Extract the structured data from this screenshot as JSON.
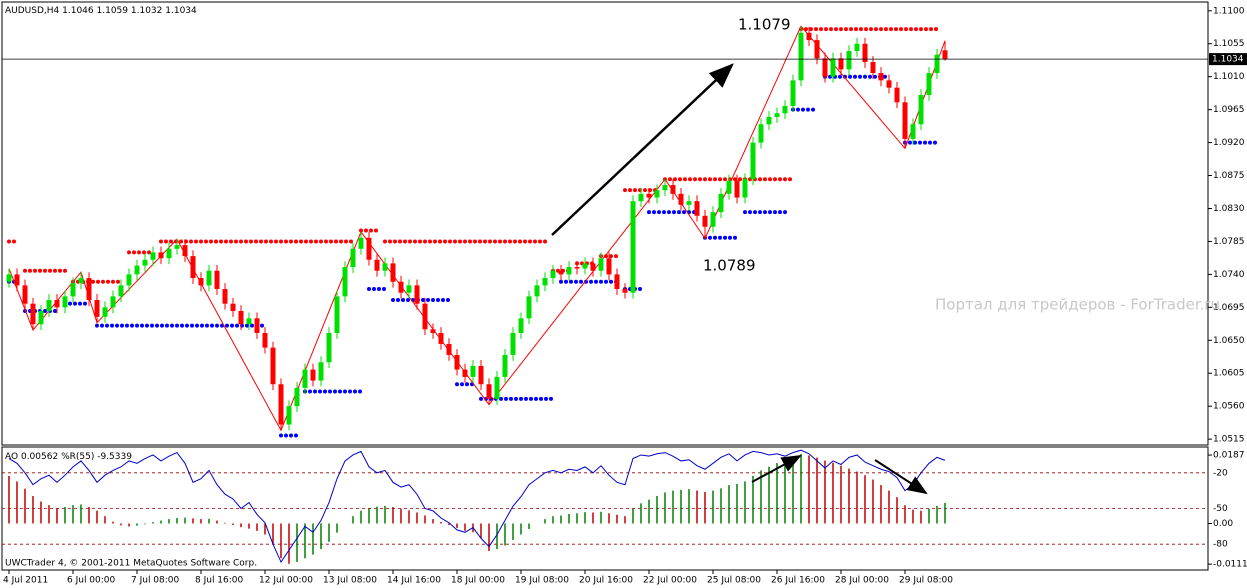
{
  "chart_data": [
    {
      "type": "candlestick",
      "title": "AUDUSD,H4",
      "categories": [
        "4 Jul 2011",
        null,
        null,
        null,
        null,
        null,
        null,
        null,
        "6 Jul 00:00",
        null,
        null,
        null,
        null,
        null,
        null,
        null,
        "7 Jul 08:00",
        null,
        null,
        null,
        null,
        null,
        null,
        null,
        "8 Jul 16:00",
        null,
        null,
        null,
        null,
        null,
        null,
        null,
        "12 Jul 00:00",
        null,
        null,
        null,
        null,
        null,
        null,
        null,
        "13 Jul 08:00",
        null,
        null,
        null,
        null,
        null,
        null,
        null,
        "14 Jul 16:00",
        null,
        null,
        null,
        null,
        null,
        null,
        null,
        "18 Jul 00:00",
        null,
        null,
        null,
        null,
        null,
        null,
        null,
        "19 Jul 08:00",
        null,
        null,
        null,
        null,
        null,
        null,
        null,
        "20 Jul 16:00",
        null,
        null,
        null,
        null,
        null,
        null,
        null,
        "22 Jul 00:00",
        null,
        null,
        null,
        null,
        null,
        null,
        null,
        "25 Jul 08:00",
        null,
        null,
        null,
        null,
        null,
        null,
        null,
        "26 Jul 16:00",
        null,
        null,
        null,
        null,
        null,
        null,
        null,
        "28 Jul 00:00",
        null,
        null,
        null,
        null,
        null,
        null,
        null,
        "29 Jul 08:00",
        null,
        null,
        null,
        null,
        null
      ],
      "open": [
        1.073,
        1.074,
        1.0725,
        1.07,
        1.0672,
        1.069,
        1.0705,
        1.0695,
        1.071,
        1.0728,
        1.0735,
        1.0705,
        1.0682,
        1.0695,
        1.071,
        1.0725,
        1.074,
        1.0752,
        1.076,
        1.077,
        1.0762,
        1.0775,
        1.078,
        1.0765,
        1.0735,
        1.0725,
        1.0745,
        1.072,
        1.07,
        1.069,
        1.0672,
        1.068,
        1.066,
        1.064,
        1.059,
        1.0535,
        1.056,
        1.0585,
        1.061,
        1.0595,
        1.062,
        1.066,
        1.071,
        1.075,
        1.0775,
        1.079,
        1.076,
        1.0745,
        1.0755,
        1.073,
        1.0715,
        1.0725,
        1.07,
        1.0665,
        1.066,
        1.0645,
        1.063,
        1.061,
        1.06,
        1.0615,
        1.059,
        1.057,
        1.06,
        1.063,
        1.066,
        1.068,
        1.071,
        1.0725,
        1.0735,
        1.0745,
        1.074,
        1.075,
        1.0748,
        1.0755,
        1.0745,
        1.0762,
        1.074,
        1.072,
        1.0715,
        1.084,
        1.085,
        1.0845,
        1.0855,
        1.0862,
        1.085,
        1.0835,
        1.084,
        1.082,
        1.0805,
        1.0825,
        1.085,
        1.0868,
        1.0845,
        1.087,
        1.092,
        1.0945,
        1.0955,
        1.096,
        1.097,
        1.1005,
        1.107,
        1.106,
        1.1035,
        1.101,
        1.1035,
        1.102,
        1.1045,
        1.1055,
        1.103,
        1.1015,
        1.1005,
        1.0995,
        1.0975,
        1.0925,
        1.0945,
        1.0985,
        1.1015,
        1.1046
      ],
      "high": [
        1.0748,
        1.0748,
        1.0733,
        1.0708,
        1.0698,
        1.0713,
        1.0713,
        1.0718,
        1.0736,
        1.0743,
        1.0743,
        1.0713,
        1.0703,
        1.0718,
        1.0733,
        1.0748,
        1.076,
        1.0768,
        1.0778,
        1.0778,
        1.0783,
        1.0788,
        1.0788,
        1.0773,
        1.0743,
        1.0753,
        1.0753,
        1.0728,
        1.0708,
        1.0698,
        1.0688,
        1.0688,
        1.0668,
        1.0648,
        1.0598,
        1.0568,
        1.0593,
        1.0618,
        1.0618,
        1.0628,
        1.0668,
        1.0718,
        1.0758,
        1.0783,
        1.0798,
        1.0798,
        1.0768,
        1.0763,
        1.0763,
        1.0738,
        1.0733,
        1.0733,
        1.0708,
        1.0673,
        1.0668,
        1.0653,
        1.0638,
        1.0618,
        1.0623,
        1.0623,
        1.0598,
        1.0608,
        1.0638,
        1.0668,
        1.0688,
        1.0718,
        1.0733,
        1.0743,
        1.0753,
        1.0753,
        1.0758,
        1.0758,
        1.0763,
        1.0763,
        1.077,
        1.077,
        1.0748,
        1.0728,
        1.0848,
        1.0858,
        1.0858,
        1.0863,
        1.087,
        1.087,
        1.0858,
        1.0848,
        1.0848,
        1.0828,
        1.0833,
        1.0858,
        1.0876,
        1.0876,
        1.0878,
        1.0928,
        1.0953,
        1.0963,
        1.0968,
        1.0978,
        1.1013,
        1.1079,
        1.1078,
        1.1068,
        1.1043,
        1.1043,
        1.1043,
        1.1053,
        1.1063,
        1.1063,
        1.1038,
        1.1023,
        1.1013,
        1.1003,
        1.0983,
        1.0953,
        1.0993,
        1.1023,
        1.1048,
        1.1059
      ],
      "low": [
        1.0722,
        1.0717,
        1.0692,
        1.0664,
        1.0664,
        1.0682,
        1.0687,
        1.0687,
        1.0702,
        1.072,
        1.0697,
        1.0674,
        1.0674,
        1.0687,
        1.0702,
        1.0717,
        1.0732,
        1.0744,
        1.0752,
        1.0754,
        1.0754,
        1.0767,
        1.0757,
        1.0727,
        1.0717,
        1.0717,
        1.0712,
        1.0692,
        1.0682,
        1.0664,
        1.0664,
        1.0652,
        1.0632,
        1.0582,
        1.0527,
        1.0527,
        1.0552,
        1.0577,
        1.0587,
        1.0587,
        1.0612,
        1.0652,
        1.0702,
        1.0742,
        1.0767,
        1.0752,
        1.0737,
        1.0737,
        1.0722,
        1.0707,
        1.0707,
        1.0692,
        1.0657,
        1.0652,
        1.0637,
        1.0622,
        1.0602,
        1.0592,
        1.0592,
        1.0582,
        1.0562,
        1.0562,
        1.0592,
        1.0622,
        1.0652,
        1.0672,
        1.0702,
        1.0717,
        1.0727,
        1.0732,
        1.0732,
        1.074,
        1.074,
        1.0737,
        1.0737,
        1.0732,
        1.0712,
        1.0707,
        1.0707,
        1.0832,
        1.0837,
        1.0837,
        1.0847,
        1.0842,
        1.0827,
        1.0827,
        1.0812,
        1.0789,
        1.0797,
        1.0817,
        1.0842,
        1.0837,
        1.0837,
        1.0862,
        1.0912,
        1.0937,
        1.0947,
        1.0952,
        1.0962,
        1.0997,
        1.1052,
        1.1027,
        1.1002,
        1.1002,
        1.1012,
        1.1012,
        1.1037,
        1.1022,
        1.1007,
        1.0997,
        1.0987,
        1.0967,
        1.0912,
        1.0917,
        1.0937,
        1.0977,
        1.1007,
        1.1032
      ],
      "close": [
        1.074,
        1.0725,
        1.07,
        1.0672,
        1.069,
        1.0705,
        1.0695,
        1.071,
        1.0728,
        1.0735,
        1.0705,
        1.0682,
        1.0695,
        1.071,
        1.0725,
        1.074,
        1.0752,
        1.076,
        1.077,
        1.0762,
        1.0775,
        1.078,
        1.0765,
        1.0735,
        1.0725,
        1.0745,
        1.072,
        1.07,
        1.069,
        1.0672,
        1.068,
        1.066,
        1.064,
        1.059,
        1.0535,
        1.056,
        1.0585,
        1.061,
        1.0595,
        1.062,
        1.066,
        1.071,
        1.075,
        1.0775,
        1.079,
        1.076,
        1.0745,
        1.0755,
        1.073,
        1.0715,
        1.0725,
        1.07,
        1.0665,
        1.066,
        1.0645,
        1.063,
        1.061,
        1.06,
        1.0615,
        1.059,
        1.057,
        1.06,
        1.063,
        1.066,
        1.068,
        1.071,
        1.0725,
        1.0735,
        1.0745,
        1.074,
        1.075,
        1.0748,
        1.0755,
        1.0745,
        1.0762,
        1.074,
        1.072,
        1.0715,
        1.084,
        1.085,
        1.0845,
        1.0855,
        1.0862,
        1.085,
        1.0835,
        1.084,
        1.082,
        1.0805,
        1.0825,
        1.085,
        1.0868,
        1.0845,
        1.087,
        1.092,
        1.0945,
        1.0955,
        1.096,
        1.097,
        1.1005,
        1.107,
        1.106,
        1.1035,
        1.101,
        1.1035,
        1.102,
        1.1045,
        1.1055,
        1.103,
        1.1015,
        1.1005,
        1.0995,
        1.0975,
        1.0925,
        1.0945,
        1.0985,
        1.1015,
        1.104,
        1.1034
      ],
      "up_color": "#00e000",
      "down_color": "#ff0000",
      "ylim": [
        1.0507,
        1.1112
      ],
      "yticks": [
        {
          "value": 1.11,
          "label": "1.1100"
        },
        1.1055,
        {
          "value": 1.101,
          "label": "1.1010"
        },
        1.0965,
        {
          "value": 1.092,
          "label": "1.0920"
        },
        1.0875,
        {
          "value": 1.083,
          "label": "1.0830"
        },
        1.0785,
        {
          "value": 1.074,
          "label": "1.0740"
        },
        1.0695,
        {
          "value": 1.065,
          "label": "1.0650"
        },
        1.0605,
        {
          "value": 1.056,
          "label": "1.0560"
        },
        1.0515
      ],
      "resistance_color": "#ff0000",
      "resistance": [
        {
          "from": 0,
          "to": 1,
          "value": 1.0785
        },
        {
          "from": 2,
          "to": 7,
          "value": 1.0745
        },
        {
          "from": 8,
          "to": 14,
          "value": 1.073
        },
        {
          "from": 15,
          "to": 18,
          "value": 1.077
        },
        {
          "from": 19,
          "to": 43,
          "value": 1.0785
        },
        {
          "from": 44,
          "to": 46,
          "value": 1.08
        },
        {
          "from": 47,
          "to": 67,
          "value": 1.0785
        },
        {
          "from": 68,
          "to": 70,
          "value": 1.0745
        },
        {
          "from": 71,
          "to": 73,
          "value": 1.0755
        },
        {
          "from": 74,
          "to": 76,
          "value": 1.0765
        },
        {
          "from": 77,
          "to": 81,
          "value": 1.0855
        },
        {
          "from": 82,
          "to": 98,
          "value": 1.087
        },
        {
          "from": 99,
          "to": 116,
          "value": 1.1075
        }
      ],
      "support_color": "#0000ff",
      "support": [
        {
          "from": 0,
          "to": 1,
          "value": 1.073
        },
        {
          "from": 2,
          "to": 6,
          "value": 1.069
        },
        {
          "from": 7,
          "to": 10,
          "value": 1.07
        },
        {
          "from": 11,
          "to": 32,
          "value": 1.067
        },
        {
          "from": 34,
          "to": 36,
          "value": 1.052
        },
        {
          "from": 37,
          "to": 44,
          "value": 1.058
        },
        {
          "from": 45,
          "to": 47,
          "value": 1.072
        },
        {
          "from": 48,
          "to": 55,
          "value": 1.0705
        },
        {
          "from": 56,
          "to": 58,
          "value": 1.059
        },
        {
          "from": 59,
          "to": 68,
          "value": 1.057
        },
        {
          "from": 69,
          "to": 76,
          "value": 1.073
        },
        {
          "from": 77,
          "to": 79,
          "value": 1.072
        },
        {
          "from": 80,
          "to": 86,
          "value": 1.0825
        },
        {
          "from": 87,
          "to": 91,
          "value": 1.079
        },
        {
          "from": 92,
          "to": 97,
          "value": 1.0825
        },
        {
          "from": 98,
          "to": 101,
          "value": 1.0965
        },
        {
          "from": 102,
          "to": 110,
          "value": 1.101
        },
        {
          "from": 112,
          "to": 116,
          "value": 1.092
        }
      ],
      "zigzag": {
        "color": "#ff0000",
        "x": [
          0,
          3,
          9,
          11,
          21,
          34,
          44,
          60,
          82,
          87,
          99,
          112,
          117
        ],
        "values": [
          1.0748,
          1.0664,
          1.0743,
          1.0674,
          1.0788,
          1.0527,
          1.0798,
          1.0562,
          1.087,
          1.0789,
          1.1079,
          1.0912,
          1.1059
        ]
      },
      "annotations": [
        "1.1079",
        "1.0789"
      ],
      "watermark": "Портал для трейдеров - ForTrader.ru",
      "footer": "UWCTrader 4, © 2001-2011 MetaQuotes Software Corp."
    },
    {
      "type": "bar",
      "series": [
        {
          "name": "AO",
          "up_color": "#008000",
          "down_color": "#c00000",
          "values": [
            0.013,
            0.0115,
            0.0095,
            0.0075,
            0.006,
            0.005,
            0.0042,
            0.0045,
            0.005,
            0.0052,
            0.0045,
            0.0035,
            0.002,
            0.0005,
            -0.0005,
            -0.0008,
            -0.0006,
            -0.0002,
            0.0004,
            0.0008,
            0.0012,
            0.0015,
            0.0016,
            0.0014,
            0.0012,
            0.0013,
            0.0008,
            0.0002,
            -0.0004,
            -0.001,
            -0.0014,
            -0.002,
            -0.003,
            -0.0055,
            -0.0095,
            -0.011,
            -0.0105,
            -0.0095,
            -0.0085,
            -0.007,
            -0.005,
            -0.0025,
            0,
            0.002,
            0.0035,
            0.0042,
            0.0046,
            0.0048,
            0.0045,
            0.004,
            0.0036,
            0.003,
            0.0022,
            0.0012,
            0.0004,
            -0.0004,
            -0.0012,
            -0.002,
            -0.0024,
            -0.004,
            -0.0075,
            -0.007,
            -0.006,
            -0.0045,
            -0.003,
            -0.0015,
            0,
            0.0012,
            0.002,
            0.0022,
            0.0026,
            0.0028,
            0.0031,
            0.003,
            0.0032,
            0.0028,
            0.0024,
            0.002,
            0.004,
            0.0055,
            0.0065,
            0.0075,
            0.0085,
            0.009,
            0.0092,
            0.0094,
            0.009,
            0.0086,
            0.009,
            0.0096,
            0.0105,
            0.0108,
            0.0115,
            0.013,
            0.0145,
            0.0155,
            0.0165,
            0.0172,
            0.018,
            0.019,
            0.0186,
            0.018,
            0.0172,
            0.0166,
            0.0158,
            0.015,
            0.0142,
            0.0132,
            0.012,
            0.0105,
            0.009,
            0.0072,
            0.005,
            0.0038,
            0.0035,
            0.004,
            0.0048,
            0.00562
          ]
        },
        {
          "name": "%R(55)",
          "axis": "y2",
          "color": "#0000cc",
          "values": [
            -8,
            -12,
            -20,
            -30,
            -25,
            -22,
            -28,
            -22,
            -15,
            -10,
            -18,
            -28,
            -22,
            -18,
            -15,
            -10,
            -12,
            -8,
            -5,
            -10,
            -6,
            -3,
            -12,
            -28,
            -25,
            -18,
            -30,
            -38,
            -42,
            -50,
            -45,
            -55,
            -62,
            -80,
            -95,
            -85,
            -75,
            -65,
            -70,
            -60,
            -45,
            -25,
            -10,
            -5,
            -2,
            -15,
            -20,
            -18,
            -28,
            -32,
            -30,
            -38,
            -50,
            -52,
            -58,
            -62,
            -68,
            -70,
            -66,
            -75,
            -82,
            -72,
            -60,
            -48,
            -40,
            -30,
            -25,
            -20,
            -18,
            -20,
            -17,
            -18,
            -15,
            -20,
            -14,
            -22,
            -28,
            -30,
            -8,
            -5,
            -6,
            -4,
            -3,
            -6,
            -10,
            -9,
            -14,
            -17,
            -12,
            -7,
            -4,
            -10,
            -5,
            -2,
            -3,
            -5,
            -4,
            -6,
            -3,
            -1,
            -4,
            -10,
            -16,
            -10,
            -13,
            -7,
            -5,
            -11,
            -14,
            -17,
            -19,
            -24,
            -35,
            -30,
            -20,
            -12,
            -7,
            -9.5339
          ]
        }
      ],
      "ylim": [
        -0.0127,
        0.0209
      ],
      "yticks": [
        0.0187,
        {
          "value": 0,
          "label": "0.00"
        },
        -0.0111
      ],
      "y2lim": [
        -101.7,
        1.7
      ],
      "y2ticks": [
        -20,
        -50,
        -80
      ],
      "level_color": "#a00000"
    }
  ]
}
